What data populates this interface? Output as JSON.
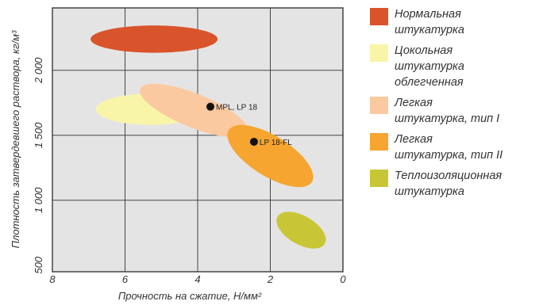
{
  "chart_data": {
    "type": "scatter",
    "xlabel": "Прочность на сжатие, Н/мм²",
    "ylabel": "Плотность затвердевшего раствора, кг/м³",
    "x_reversed": true,
    "xlim": [
      8,
      0
    ],
    "ylim": [
      450,
      2480
    ],
    "x_ticks": [
      {
        "value": 8,
        "label": "8"
      },
      {
        "value": 6,
        "label": "6"
      },
      {
        "value": 4,
        "label": "4"
      },
      {
        "value": 2,
        "label": "2"
      },
      {
        "value": 0,
        "label": "0"
      }
    ],
    "y_ticks": [
      {
        "value": 500,
        "label": "500"
      },
      {
        "value": 1000,
        "label": "1 000"
      },
      {
        "value": 1500,
        "label": "1 500"
      },
      {
        "value": 2000,
        "label": "2 000"
      }
    ],
    "gridlines": {
      "x": [
        6,
        4,
        2
      ],
      "y": [
        1000,
        1500,
        2000
      ]
    },
    "grid": true,
    "legend_position": "right",
    "plot_background": "#e4e4e4",
    "regions": [
      {
        "name": "Цокольная штукатурка облегченная",
        "color": "#f9f5a8",
        "cx": 5.3,
        "cy": 1700,
        "rx": 1.5,
        "ry": 120,
        "rotate": 0
      },
      {
        "name": "Нормальная штукатурка",
        "color": "#d9542b",
        "cx": 5.2,
        "cy": 2240,
        "rx": 1.75,
        "ry": 105,
        "rotate": 0
      },
      {
        "name": "Легкая штукатурка, тип I",
        "color": "#fbc9a0",
        "cx": 4.1,
        "cy": 1690,
        "rx": 1.6,
        "ry": 130,
        "rotate": 22
      },
      {
        "name": "Легкая штукатурка, тип II",
        "color": "#f6a530",
        "cx": 2.0,
        "cy": 1340,
        "rx": 1.35,
        "ry": 155,
        "rotate": 32
      },
      {
        "name": "Теплоизоляционная штукатурка",
        "color": "#c9c636",
        "cx": 1.15,
        "cy": 770,
        "rx": 0.75,
        "ry": 110,
        "rotate": 30
      }
    ],
    "points": [
      {
        "label": "MPL, LP 18",
        "x": 3.65,
        "y": 1720
      },
      {
        "label": "LP 18-FL",
        "x": 2.45,
        "y": 1450
      }
    ]
  },
  "legend": [
    {
      "label": "Нормальная\nштукатурка",
      "color": "#d9542b"
    },
    {
      "label": "Цокольная\nштукатурка\nоблегченная",
      "color": "#f9f5a8"
    },
    {
      "label": "Легкая\nштукатурка, тип I",
      "color": "#fbc9a0"
    },
    {
      "label": "Легкая\nштукатурка, тип II",
      "color": "#f6a530"
    },
    {
      "label": "Теплоизоляционная\nштукатурка",
      "color": "#c9c636"
    }
  ]
}
